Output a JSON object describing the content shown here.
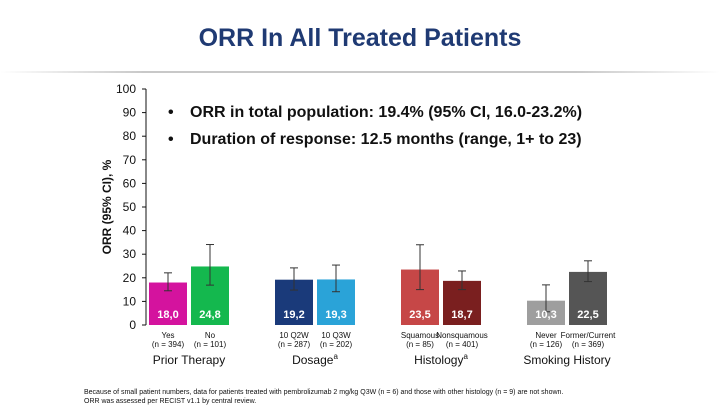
{
  "title": "ORR In All Treated Patients",
  "bullets": [
    "ORR in total population: 19.4% (95% CI, 16.0-23.2%)",
    "Duration of response: 12.5 months (range, 1+ to 23)"
  ],
  "footnotes": [
    "Because of small patient numbers, data for patients treated with pembrolizumab 2 mg/kg Q3W (n = 6) and those with other histology (n = 9) are not shown.",
    "ORR was assessed per RECIST v1.1 by central review."
  ],
  "chart_data": {
    "type": "bar",
    "ylabel": "ORR (95% CI), %",
    "ylim": [
      0,
      100
    ],
    "yticks": [
      "0",
      "10",
      "20",
      "30",
      "40",
      "50",
      "60",
      "70",
      "80",
      "90",
      "100"
    ],
    "grid": false,
    "groups": [
      {
        "name": "Prior Therapy",
        "superscript": "",
        "bars": [
          {
            "label": "Yes",
            "n": "(n = 394)",
            "value": 18.0,
            "value_label": "18,0",
            "ci": [
              14.5,
              22.1
            ],
            "color": "#d4139e"
          },
          {
            "label": "No",
            "n": "(n = 101)",
            "value": 24.8,
            "value_label": "24,8",
            "ci": [
              16.9,
              34.1
            ],
            "color": "#14b84e"
          }
        ]
      },
      {
        "name": "Dosage",
        "superscript": "a",
        "bars": [
          {
            "label": "10 Q2W",
            "n": "(n = 287)",
            "value": 19.2,
            "value_label": "19,2",
            "ci": [
              14.8,
              24.2
            ],
            "color": "#1a3a7a"
          },
          {
            "label": "10 Q3W",
            "n": "(n = 202)",
            "value": 19.3,
            "value_label": "19,3",
            "ci": [
              14.1,
              25.4
            ],
            "color": "#2aa3d8"
          }
        ]
      },
      {
        "name": "Histology",
        "superscript": "a",
        "bars": [
          {
            "label": "Squamous",
            "n": "(n = 85)",
            "value": 23.5,
            "value_label": "23,5",
            "ci": [
              15.0,
              34.0
            ],
            "color": "#c64747"
          },
          {
            "label": "Nonsquamous",
            "n": "(n = 401)",
            "value": 18.7,
            "value_label": "18,7",
            "ci": [
              15.0,
              22.9
            ],
            "color": "#7a1f1f"
          }
        ]
      },
      {
        "name": "Smoking History",
        "superscript": "",
        "bars": [
          {
            "label": "Never",
            "n": "(n = 126)",
            "value": 10.3,
            "value_label": "10,3",
            "ci": [
              5.6,
              17.0
            ],
            "color": "#9e9e9e"
          },
          {
            "label": "Former/Current",
            "n": "(n = 369)",
            "value": 22.5,
            "value_label": "22,5",
            "ci": [
              18.4,
              27.2
            ],
            "color": "#555555"
          }
        ]
      }
    ]
  }
}
